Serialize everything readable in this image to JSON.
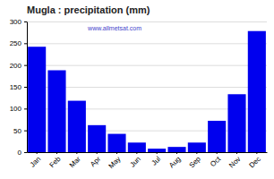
{
  "chart_data": {
    "type": "bar",
    "title": "Mugla : precipitation (mm)",
    "categories": [
      "Jan",
      "Feb",
      "Mar",
      "Apr",
      "May",
      "Jun",
      "Jul",
      "Aug",
      "Sep",
      "Oct",
      "Nov",
      "Dec"
    ],
    "values": [
      242,
      188,
      118,
      62,
      42,
      22,
      8,
      12,
      22,
      72,
      133,
      278
    ],
    "color": "#0000ee",
    "ylim": [
      0,
      300
    ],
    "yticks": [
      0,
      50,
      100,
      150,
      200,
      250,
      300
    ],
    "grid": true,
    "annotations": [
      "www.allmetsat.com"
    ]
  }
}
